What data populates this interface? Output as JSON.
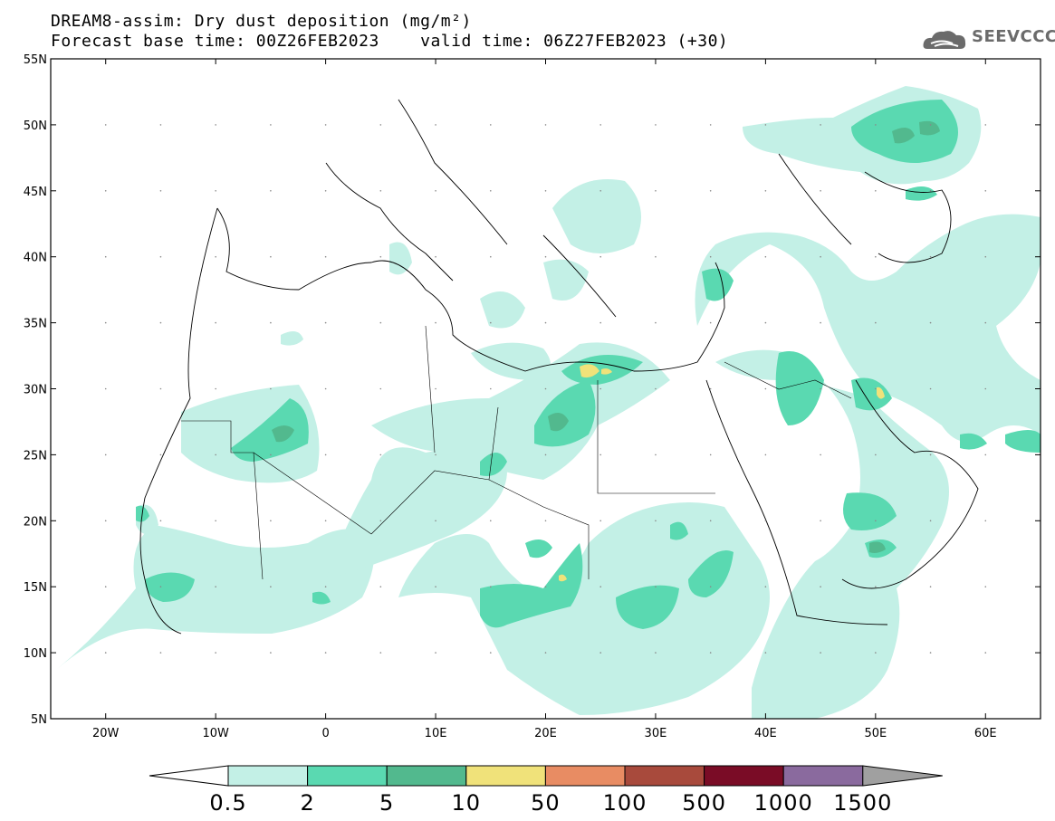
{
  "title": {
    "line1": "DREAM8-assim: Dry dust deposition (mg/m²)",
    "line2": "Forecast base time: 00Z26FEB2023    valid time: 06Z27FEB2023 (+30)"
  },
  "logo": {
    "text": "SEEVCCC",
    "icon": "cloud-logo-icon"
  },
  "axes": {
    "lat_labels": [
      "55N",
      "50N",
      "45N",
      "40N",
      "35N",
      "30N",
      "25N",
      "20N",
      "15N",
      "10N",
      "5N"
    ],
    "lon_labels": [
      "20W",
      "10W",
      "0",
      "10E",
      "20E",
      "30E",
      "40E",
      "50E",
      "60E"
    ],
    "lat_range": [
      5,
      55
    ],
    "lon_range": [
      -25,
      65
    ]
  },
  "colorbar": {
    "labels": [
      "0.5",
      "2",
      "5",
      "10",
      "50",
      "100",
      "500",
      "1000",
      "1500"
    ],
    "colors": [
      "#c3f0e6",
      "#5ad9b1",
      "#52b98e",
      "#f0e27a",
      "#e88c63",
      "#a84a3c",
      "#7a0c26",
      "#8a6a9e",
      "#a0a0a0"
    ]
  }
}
